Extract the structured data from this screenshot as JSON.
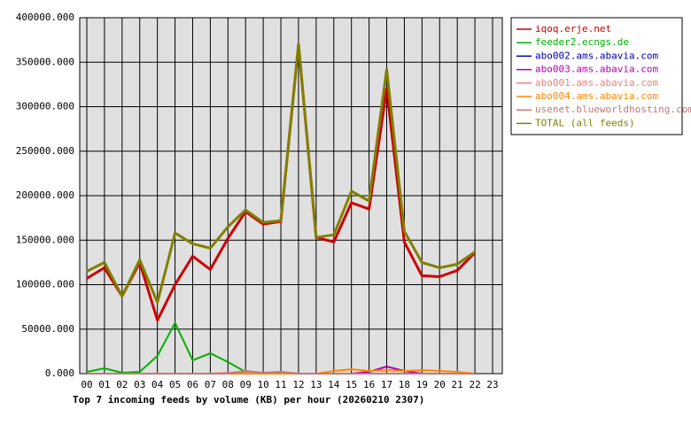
{
  "chart_data": {
    "type": "line",
    "title": "Top 7 incoming feeds by volume (KB) per hour (20260210 2307)",
    "categories": [
      "00",
      "01",
      "02",
      "03",
      "04",
      "05",
      "06",
      "07",
      "08",
      "09",
      "10",
      "11",
      "12",
      "13",
      "14",
      "15",
      "16",
      "17",
      "18",
      "19",
      "20",
      "21",
      "22",
      "23"
    ],
    "ylim": [
      0,
      400000
    ],
    "yticks": [
      {
        "value": 0,
        "label": "0.000"
      },
      {
        "value": 50000,
        "label": "50000.000"
      },
      {
        "value": 100000,
        "label": "100000.000"
      },
      {
        "value": 150000,
        "label": "150000.000"
      },
      {
        "value": 200000,
        "label": "200000.000"
      },
      {
        "value": 250000,
        "label": "250000.000"
      },
      {
        "value": 300000,
        "label": "300000.000"
      },
      {
        "value": 350000,
        "label": "350000.000"
      },
      {
        "value": 400000,
        "label": "400000.000"
      }
    ],
    "grid": true,
    "legend": "outside-right",
    "series": [
      {
        "name": "iqoq.erje.net",
        "color": "#cc0000",
        "values": [
          107000,
          119000,
          87000,
          125000,
          60000,
          100000,
          132000,
          117000,
          152000,
          182000,
          168000,
          171000,
          370000,
          153000,
          148000,
          192000,
          185000,
          320000,
          148000,
          110000,
          109000,
          116000,
          136000,
          null
        ]
      },
      {
        "name": "feeder2.ecngs.de",
        "color": "#00b000",
        "values": [
          2000,
          6000,
          1000,
          2000,
          20000,
          57000,
          15000,
          23000,
          13000,
          2000,
          1000,
          1000,
          0,
          0,
          0,
          0,
          0,
          0,
          0,
          0,
          0,
          0,
          0,
          null
        ]
      },
      {
        "name": "abo002.ams.abavia.com",
        "color": "#0000b0",
        "values": [
          0,
          0,
          0,
          0,
          0,
          0,
          0,
          0,
          0,
          0,
          0,
          0,
          0,
          0,
          0,
          0,
          0,
          0,
          0,
          0,
          0,
          0,
          0,
          null
        ]
      },
      {
        "name": "abo003.ams.abavia.com",
        "color": "#b000b0",
        "values": [
          0,
          0,
          0,
          0,
          0,
          0,
          0,
          0,
          0,
          0,
          0,
          0,
          0,
          0,
          0,
          0,
          2000,
          8000,
          3000,
          0,
          0,
          0,
          0,
          null
        ]
      },
      {
        "name": "abo001.ams.abavia.com",
        "color": "#f08080",
        "values": [
          0,
          0,
          0,
          0,
          0,
          0,
          0,
          0,
          1000,
          2000,
          1000,
          2000,
          0,
          0,
          0,
          0,
          0,
          0,
          0,
          0,
          0,
          0,
          0,
          null
        ]
      },
      {
        "name": "abo004.ams.abavia.com",
        "color": "#ff8800",
        "values": [
          0,
          0,
          0,
          0,
          0,
          0,
          0,
          0,
          0,
          0,
          0,
          0,
          0,
          0,
          3000,
          5000,
          3000,
          4000,
          3000,
          4000,
          3000,
          2000,
          0,
          null
        ]
      },
      {
        "name": "usenet.blueworldhosting.com",
        "color": "#c07878",
        "values": [
          0,
          0,
          0,
          0,
          0,
          0,
          0,
          0,
          0,
          3000,
          1000,
          2000,
          0,
          0,
          0,
          0,
          0,
          0,
          0,
          0,
          0,
          0,
          0,
          null
        ]
      },
      {
        "name": "TOTAL (all feeds)",
        "color": "#808000",
        "values": [
          115000,
          125000,
          87000,
          128000,
          80000,
          158000,
          146000,
          141000,
          165000,
          184000,
          170000,
          172000,
          370000,
          153000,
          156000,
          205000,
          194000,
          342000,
          160000,
          125000,
          119000,
          123000,
          137000,
          null
        ]
      }
    ]
  }
}
